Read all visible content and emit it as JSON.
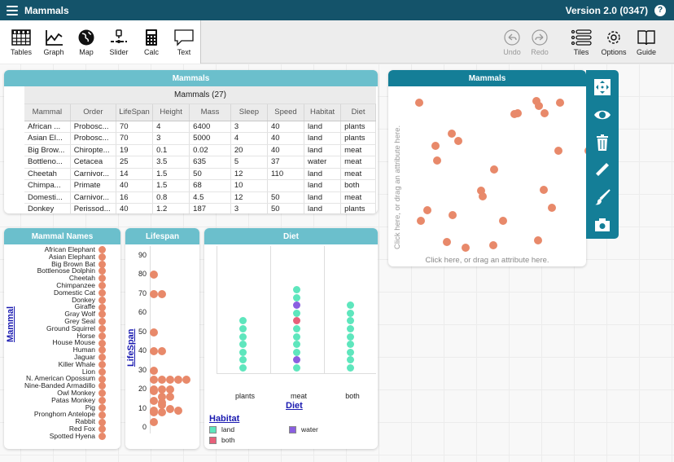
{
  "titlebar": {
    "menu_icon": "hamburger-icon",
    "title": "Mammals",
    "version": "Version 2.0 (0347)",
    "help": "?"
  },
  "toolbar": {
    "left": [
      {
        "label": "Tables",
        "icon": "table-icon"
      },
      {
        "label": "Graph",
        "icon": "graph-icon"
      },
      {
        "label": "Map",
        "icon": "globe-icon"
      },
      {
        "label": "Slider",
        "icon": "slider-icon"
      },
      {
        "label": "Calc",
        "icon": "calculator-icon"
      },
      {
        "label": "Text",
        "icon": "speech-bubble-icon"
      }
    ],
    "right": [
      {
        "label": "Undo",
        "icon": "undo-icon",
        "disabled": true
      },
      {
        "label": "Redo",
        "icon": "redo-icon",
        "disabled": true
      },
      {
        "label": "Tiles",
        "icon": "tiles-list-icon"
      },
      {
        "label": "Options",
        "icon": "gear-icon"
      },
      {
        "label": "Guide",
        "icon": "book-icon"
      }
    ]
  },
  "table": {
    "tile_title": "Mammals",
    "collection_title": "Mammals (27)",
    "columns": [
      "Mammal",
      "Order",
      "LifeSpan",
      "Height",
      "Mass",
      "Sleep",
      "Speed",
      "Habitat",
      "Diet"
    ],
    "rows": [
      [
        "African ...",
        "Probosc...",
        "70",
        "4",
        "6400",
        "3",
        "40",
        "land",
        "plants"
      ],
      [
        "Asian El...",
        "Probosc...",
        "70",
        "3",
        "5000",
        "4",
        "40",
        "land",
        "plants"
      ],
      [
        "Big Brow...",
        "Chiropte...",
        "19",
        "0.1",
        "0.02",
        "20",
        "40",
        "land",
        "meat"
      ],
      [
        "Bottleno...",
        "Cetacea",
        "25",
        "3.5",
        "635",
        "5",
        "37",
        "water",
        "meat"
      ],
      [
        "Cheetah",
        "Carnivor...",
        "14",
        "1.5",
        "50",
        "12",
        "110",
        "land",
        "meat"
      ],
      [
        "Chimpa...",
        "Primate",
        "40",
        "1.5",
        "68",
        "10",
        "",
        "land",
        "both"
      ],
      [
        "Domesti...",
        "Carnivor...",
        "16",
        "0.8",
        "4.5",
        "12",
        "50",
        "land",
        "meat"
      ],
      [
        "Donkey",
        "Perissod...",
        "40",
        "1.2",
        "187",
        "3",
        "50",
        "land",
        "plants"
      ]
    ]
  },
  "graph": {
    "tile_title": "Mammals",
    "y_hint": "Click here, or drag an attribute here.",
    "x_hint": "Click here, or drag an attribute here.",
    "point_color": "#e8896a",
    "points": [
      [
        15,
        15
      ],
      [
        159,
        13
      ],
      [
        162,
        19
      ],
      [
        188,
        15
      ],
      [
        136,
        28
      ],
      [
        132,
        29
      ],
      [
        169,
        28
      ],
      [
        55,
        53
      ],
      [
        63,
        62
      ],
      [
        35,
        68
      ],
      [
        186,
        74
      ],
      [
        223,
        74
      ],
      [
        37,
        86
      ],
      [
        107,
        97
      ],
      [
        91,
        123
      ],
      [
        93,
        130
      ],
      [
        168,
        122
      ],
      [
        178,
        144
      ],
      [
        25,
        147
      ],
      [
        56,
        153
      ],
      [
        17,
        160
      ],
      [
        237,
        152
      ],
      [
        118,
        160
      ],
      [
        49,
        186
      ],
      [
        72,
        193
      ],
      [
        106,
        190
      ],
      [
        161,
        184
      ]
    ],
    "toolbar_icons": [
      "fit-arrows-icon",
      "eye-icon",
      "trash-icon",
      "ruler-icon",
      "paintbrush-icon",
      "camera-icon"
    ]
  },
  "names": {
    "tile_title": "Mammal Names",
    "axis_label": "Mammal",
    "items": [
      "African Elephant",
      "Asian Elephant",
      "Big Brown Bat",
      "Bottlenose Dolphin",
      "Cheetah",
      "Chimpanzee",
      "Domestic Cat",
      "Donkey",
      "Giraffe",
      "Gray Wolf",
      "Grey Seal",
      "Ground Squirrel",
      "Horse",
      "House Mouse",
      "Human",
      "Jaguar",
      "Killer Whale",
      "Lion",
      "N. American Opossum",
      "Nine-Banded Armadillo",
      "Owl Monkey",
      "Patas Monkey",
      "Pig",
      "Pronghorn Antelope",
      "Rabbit",
      "Red Fox",
      "Spotted Hyena"
    ]
  },
  "lifespan": {
    "tile_title": "Lifespan",
    "axis_label": "LifeSpan",
    "ticks": [
      "90",
      "80",
      "70",
      "60",
      "50",
      "40",
      "30",
      "20",
      "10",
      "0"
    ]
  },
  "diet": {
    "tile_title": "Diet",
    "axis_label": "Diet",
    "categories": [
      "plants",
      "meat",
      "both"
    ],
    "legend_title": "Habitat",
    "legend": [
      {
        "label": "land",
        "color": "#5ee6bd"
      },
      {
        "label": "water",
        "color": "#8a5fe0"
      },
      {
        "label": "both",
        "color": "#e8607a"
      }
    ]
  },
  "chart_data": [
    {
      "type": "scatter",
      "title": "Lifespan",
      "ylabel": "LifeSpan",
      "ylim": [
        0,
        90
      ],
      "values": [
        70,
        70,
        19,
        25,
        14,
        40,
        16,
        40,
        25,
        16,
        30,
        9,
        20,
        3,
        80,
        20,
        50,
        25,
        8,
        20,
        12,
        10,
        25,
        13,
        9,
        8,
        25
      ]
    },
    {
      "type": "bar",
      "title": "Diet",
      "xlabel": "Diet",
      "categories": [
        "plants",
        "meat",
        "both"
      ],
      "series": [
        {
          "name": "land",
          "values": [
            7,
            8,
            9
          ]
        },
        {
          "name": "water",
          "values": [
            0,
            2,
            0
          ]
        },
        {
          "name": "both",
          "values": [
            0,
            1,
            0
          ]
        }
      ]
    }
  ]
}
